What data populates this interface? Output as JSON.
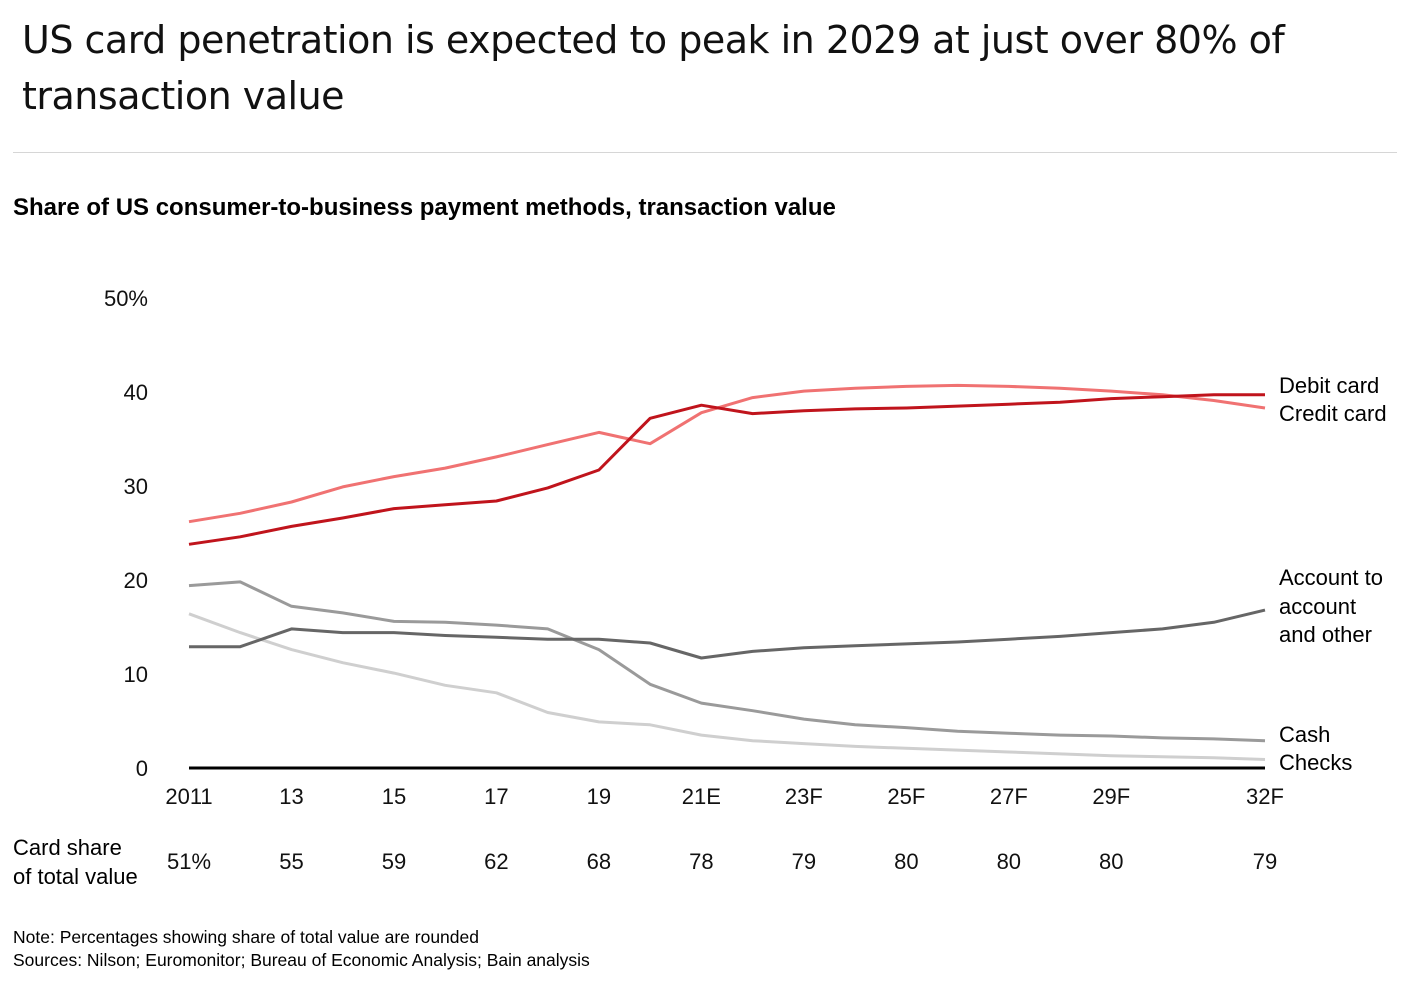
{
  "headline": "US card penetration is expected to peak in 2029 at just over 80% of transaction value",
  "chart_data": {
    "type": "line",
    "title": "Share of US consumer-to-business payment methods, transaction value",
    "ylim": [
      0,
      50
    ],
    "y_ticks": [
      "0",
      "10",
      "20",
      "30",
      "40",
      "50%"
    ],
    "y_tick_values": [
      0,
      10,
      20,
      30,
      40,
      50
    ],
    "x": [
      2011,
      2012,
      2013,
      2014,
      2015,
      2016,
      2017,
      2018,
      2019,
      2020,
      2021,
      2022,
      2023,
      2024,
      2025,
      2026,
      2027,
      2028,
      2029,
      2030,
      2031,
      2032
    ],
    "x_tick_years": [
      2011,
      2013,
      2015,
      2017,
      2019,
      2021,
      2023,
      2025,
      2027,
      2029,
      2032
    ],
    "x_tick_labels": [
      "2011",
      "13",
      "15",
      "17",
      "19",
      "21E",
      "23F",
      "25F",
      "27F",
      "29F",
      "32F"
    ],
    "grid": false,
    "legend": "direct labels at right",
    "series": [
      {
        "name": "Debit card",
        "color": "#c0141c",
        "values": [
          23.8,
          24.6,
          25.7,
          26.6,
          27.6,
          28.0,
          28.4,
          29.8,
          31.7,
          37.2,
          38.6,
          37.7,
          38.0,
          38.2,
          38.3,
          38.5,
          38.7,
          38.9,
          39.3,
          39.5,
          39.7,
          39.7
        ]
      },
      {
        "name": "Credit card",
        "color": "#f07272",
        "values": [
          26.2,
          27.1,
          28.3,
          29.9,
          31.0,
          31.9,
          33.1,
          34.4,
          35.7,
          34.5,
          37.8,
          39.4,
          40.1,
          40.4,
          40.6,
          40.7,
          40.6,
          40.4,
          40.1,
          39.7,
          39.1,
          38.3
        ]
      },
      {
        "name": "Account to account and other",
        "color": "#666666",
        "values": [
          12.9,
          12.9,
          14.8,
          14.4,
          14.4,
          14.1,
          13.9,
          13.7,
          13.7,
          13.3,
          11.7,
          12.4,
          12.8,
          13.0,
          13.2,
          13.4,
          13.7,
          14.0,
          14.4,
          14.8,
          15.5,
          16.8
        ]
      },
      {
        "name": "Cash",
        "color": "#9a9a9a",
        "values": [
          19.4,
          19.8,
          17.2,
          16.5,
          15.6,
          15.5,
          15.2,
          14.8,
          12.6,
          8.9,
          6.9,
          6.1,
          5.2,
          4.6,
          4.3,
          3.9,
          3.7,
          3.5,
          3.4,
          3.2,
          3.1,
          2.9
        ]
      },
      {
        "name": "Checks",
        "color": "#cfcfcf",
        "values": [
          16.4,
          14.4,
          12.6,
          11.2,
          10.1,
          8.8,
          8.0,
          5.9,
          4.9,
          4.6,
          3.5,
          2.9,
          2.6,
          2.3,
          2.1,
          1.9,
          1.7,
          1.5,
          1.3,
          1.2,
          1.1,
          0.9
        ]
      }
    ],
    "series_labels": {
      "debit": "Debit card",
      "credit": "Credit card",
      "a2a": [
        "Account to",
        "account",
        "and other"
      ],
      "cash": "Cash",
      "checks": "Checks"
    },
    "card_share": {
      "label": [
        "Card share",
        "of total value"
      ],
      "values": [
        "51%",
        "55",
        "59",
        "62",
        "68",
        "78",
        "79",
        "80",
        "80",
        "80",
        "79"
      ]
    }
  },
  "notes": {
    "note": "Note: Percentages showing share of total value are rounded",
    "sources": "Sources: Nilson; Euromonitor; Bureau of Economic Analysis; Bain analysis"
  }
}
